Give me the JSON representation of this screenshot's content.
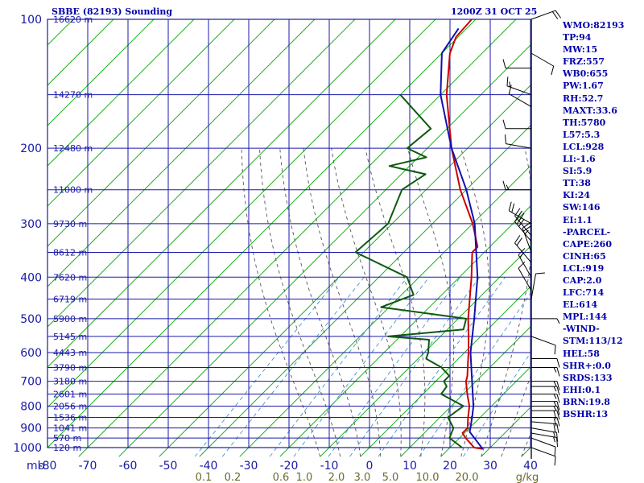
{
  "header": {
    "station_title": "SBBE (82193) Sounding",
    "time_title": "1200Z 31 OCT 25"
  },
  "indices": [
    "WMO:82193",
    "TP:94",
    "MW:15",
    "FRZ:557",
    "WB0:655",
    "PW:1.67",
    "RH:52.7",
    "MAXT:33.6",
    "TH:5780",
    "L57:5.3",
    "LCL:928",
    "LI:-1.6",
    "SI:5.9",
    "TT:38",
    "KI:24",
    "SW:146",
    "EI:1.1",
    "-PARCEL-",
    "CAPE:260",
    "CINH:65",
    "LCL:919",
    "CAP:2.0",
    "LFC:714",
    "EL:614",
    "MPL:144",
    "-WIND-",
    "STM:113/12",
    "HEL:58",
    "SHR+:0.0",
    "SRDS:133",
    "EHI:0.1",
    "BRN:19.8",
    "BSHR:13"
  ],
  "colors": {
    "background": "#ffffff",
    "grid_blue": "#1a1aa8",
    "isotherm_green": "#22b022",
    "temperature_red": "#cc0000",
    "dewpoint_green": "#0d5a0d",
    "parcel_blue": "#1010b0",
    "moist_adiabat": "#555555",
    "mixing_ratio": "#4a90d0",
    "mixing_label": "#6d6a2a"
  },
  "chart_data": {
    "type": "skew-t",
    "xlabel": "mb",
    "y_pressure_ticks": [
      "100",
      "200",
      "300",
      "400",
      "500",
      "600",
      "700",
      "800",
      "900",
      "1000"
    ],
    "height_labels": [
      {
        "p": 100,
        "label": "16620 m"
      },
      {
        "p": 150,
        "label": "14270 m"
      },
      {
        "p": 200,
        "label": "12480 m"
      },
      {
        "p": 250,
        "label": "11000 m"
      },
      {
        "p": 300,
        "label": "9730 m"
      },
      {
        "p": 350,
        "label": "8612 m"
      },
      {
        "p": 400,
        "label": "7620 m"
      },
      {
        "p": 450,
        "label": "6719 m"
      },
      {
        "p": 500,
        "label": "5900 m"
      },
      {
        "p": 550,
        "label": "5145 m"
      },
      {
        "p": 600,
        "label": "4443 m"
      },
      {
        "p": 650,
        "label": "3790 m"
      },
      {
        "p": 700,
        "label": "3180 m"
      },
      {
        "p": 750,
        "label": "2601 m"
      },
      {
        "p": 800,
        "label": "2056 m"
      },
      {
        "p": 850,
        "label": "1536 m"
      },
      {
        "p": 900,
        "label": "1041 m"
      },
      {
        "p": 950,
        "label": "570 m"
      },
      {
        "p": 1000,
        "label": "120 m"
      }
    ],
    "x_temperature_ticks": [
      "-80",
      "-70",
      "-60",
      "-50",
      "-40",
      "-30",
      "-20",
      "-10",
      "0",
      "10",
      "20",
      "30",
      "40"
    ],
    "mixing_ratio_labels": [
      "0.1",
      "0.2",
      "0.6",
      "1.0",
      "2.0",
      "3.0",
      "5.0",
      "10.0",
      "20.0",
      "g/kg"
    ],
    "series": [
      {
        "kind": "temperature",
        "points": [
          {
            "p": 1008,
            "t": 28.5
          },
          {
            "p": 1000,
            "t": 26.0
          },
          {
            "p": 950,
            "t": 21.5
          },
          {
            "p": 925,
            "t": 19.5
          },
          {
            "p": 900,
            "t": 19.5
          },
          {
            "p": 850,
            "t": 17.0
          },
          {
            "p": 800,
            "t": 14.5
          },
          {
            "p": 750,
            "t": 11.0
          },
          {
            "p": 700,
            "t": 7.5
          },
          {
            "p": 680,
            "t": 6.5
          },
          {
            "p": 650,
            "t": 4.5
          },
          {
            "p": 600,
            "t": 1.0
          },
          {
            "p": 550,
            "t": -3.0
          },
          {
            "p": 500,
            "t": -7.5
          },
          {
            "p": 450,
            "t": -12.0
          },
          {
            "p": 400,
            "t": -17.0
          },
          {
            "p": 350,
            "t": -23.0
          },
          {
            "p": 340,
            "t": -23.0
          },
          {
            "p": 300,
            "t": -30.0
          },
          {
            "p": 250,
            "t": -41.5
          },
          {
            "p": 200,
            "t": -54.0
          },
          {
            "p": 150,
            "t": -68.5
          },
          {
            "p": 120,
            "t": -78.0
          },
          {
            "p": 110,
            "t": -80.5
          },
          {
            "p": 100,
            "t": -81.0
          }
        ]
      },
      {
        "kind": "dewpoint",
        "points": [
          {
            "p": 1000,
            "t": 23.0
          },
          {
            "p": 950,
            "t": 17.5
          },
          {
            "p": 900,
            "t": 16.0
          },
          {
            "p": 850,
            "t": 12.0
          },
          {
            "p": 800,
            "t": 13.0
          },
          {
            "p": 750,
            "t": 4.5
          },
          {
            "p": 720,
            "t": 4.0
          },
          {
            "p": 700,
            "t": 2.0
          },
          {
            "p": 680,
            "t": 2.0
          },
          {
            "p": 650,
            "t": -2.0
          },
          {
            "p": 620,
            "t": -8.0
          },
          {
            "p": 600,
            "t": -9.0
          },
          {
            "p": 560,
            "t": -12.0
          },
          {
            "p": 550,
            "t": -23.0
          },
          {
            "p": 530,
            "t": -6.0
          },
          {
            "p": 500,
            "t": -8.0
          },
          {
            "p": 470,
            "t": -32.0
          },
          {
            "p": 440,
            "t": -27.0
          },
          {
            "p": 400,
            "t": -33.0
          },
          {
            "p": 350,
            "t": -52.0
          },
          {
            "p": 300,
            "t": -51.0
          },
          {
            "p": 250,
            "t": -56.0
          },
          {
            "p": 230,
            "t": -54.0
          },
          {
            "p": 220,
            "t": -65.0
          },
          {
            "p": 210,
            "t": -58.0
          },
          {
            "p": 200,
            "t": -65.0
          },
          {
            "p": 180,
            "t": -64.0
          },
          {
            "p": 150,
            "t": -80.0
          }
        ]
      },
      {
        "kind": "parcel",
        "points": [
          {
            "p": 1008,
            "t": 28.5
          },
          {
            "p": 919,
            "t": 21.0
          },
          {
            "p": 850,
            "t": 18.0
          },
          {
            "p": 800,
            "t": 15.5
          },
          {
            "p": 700,
            "t": 9.0
          },
          {
            "p": 600,
            "t": 1.5
          },
          {
            "p": 500,
            "t": -6.0
          },
          {
            "p": 400,
            "t": -15.5
          },
          {
            "p": 300,
            "t": -29.5
          },
          {
            "p": 250,
            "t": -40.0
          },
          {
            "p": 200,
            "t": -54.0
          },
          {
            "p": 150,
            "t": -70.0
          },
          {
            "p": 120,
            "t": -80.0
          },
          {
            "p": 105,
            "t": -82.0
          }
        ]
      }
    ],
    "winds": [
      {
        "p": 1000,
        "dir": 110,
        "spd": 10
      },
      {
        "p": 950,
        "dir": 110,
        "spd": 10
      },
      {
        "p": 925,
        "dir": 100,
        "spd": 15
      },
      {
        "p": 900,
        "dir": 100,
        "spd": 15
      },
      {
        "p": 870,
        "dir": 95,
        "spd": 20
      },
      {
        "p": 850,
        "dir": 90,
        "spd": 20
      },
      {
        "p": 820,
        "dir": 90,
        "spd": 20
      },
      {
        "p": 800,
        "dir": 90,
        "spd": 15
      },
      {
        "p": 780,
        "dir": 90,
        "spd": 15
      },
      {
        "p": 750,
        "dir": 90,
        "spd": 15
      },
      {
        "p": 720,
        "dir": 90,
        "spd": 15
      },
      {
        "p": 700,
        "dir": 90,
        "spd": 15
      },
      {
        "p": 650,
        "dir": 90,
        "spd": 15
      },
      {
        "p": 620,
        "dir": 90,
        "spd": 10
      },
      {
        "p": 550,
        "dir": 110,
        "spd": 10
      },
      {
        "p": 500,
        "dir": 90,
        "spd": 5
      },
      {
        "p": 450,
        "dir": 10,
        "spd": 10
      },
      {
        "p": 430,
        "dir": 330,
        "spd": 10
      },
      {
        "p": 400,
        "dir": 330,
        "spd": 15
      },
      {
        "p": 370,
        "dir": 320,
        "spd": 20
      },
      {
        "p": 350,
        "dir": 340,
        "spd": 25
      },
      {
        "p": 330,
        "dir": 320,
        "spd": 30
      },
      {
        "p": 320,
        "dir": 320,
        "spd": 30
      },
      {
        "p": 300,
        "dir": 300,
        "spd": 20
      },
      {
        "p": 250,
        "dir": 270,
        "spd": 15
      },
      {
        "p": 200,
        "dir": 280,
        "spd": 10
      },
      {
        "p": 180,
        "dir": 270,
        "spd": 10
      },
      {
        "p": 160,
        "dir": 300,
        "spd": 10
      },
      {
        "p": 150,
        "dir": 290,
        "spd": 15
      },
      {
        "p": 130,
        "dir": 270,
        "spd": 10
      },
      {
        "p": 120,
        "dir": 120,
        "spd": 10
      },
      {
        "p": 100,
        "dir": 70,
        "spd": 20
      }
    ]
  }
}
